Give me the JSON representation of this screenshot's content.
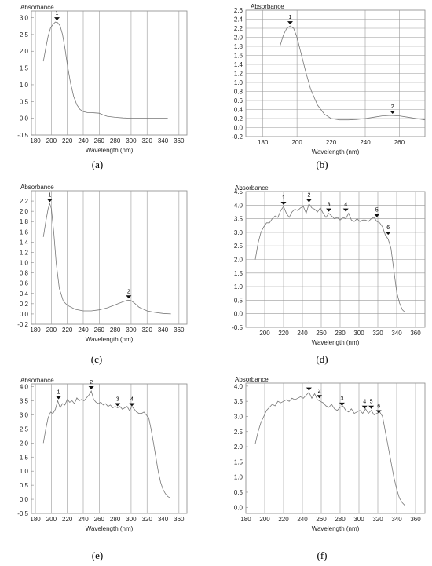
{
  "chart_data": [
    {
      "panel": "(a)",
      "type": "line",
      "ylabel": "Absorbance",
      "xlabel": "Wavelength (nm)",
      "xlim": [
        175,
        370
      ],
      "ylim": [
        -0.5,
        3.2
      ],
      "grid": "x",
      "xticks": [
        180,
        200,
        220,
        240,
        260,
        280,
        300,
        320,
        340,
        360
      ],
      "yticks": [
        -0.5,
        0.0,
        0.5,
        1.0,
        1.5,
        2.0,
        2.5,
        3.0
      ],
      "series": [
        {
          "x": [
            190,
            193,
            196,
            199,
            202,
            205,
            208,
            211,
            214,
            217,
            220,
            224,
            228,
            232,
            236,
            240,
            245,
            250,
            255,
            260,
            265,
            270,
            280,
            290,
            300,
            310,
            320,
            330,
            340,
            346
          ],
          "y": [
            1.7,
            2.1,
            2.45,
            2.7,
            2.8,
            2.87,
            2.85,
            2.75,
            2.5,
            2.1,
            1.6,
            1.05,
            0.65,
            0.4,
            0.26,
            0.2,
            0.17,
            0.17,
            0.16,
            0.15,
            0.1,
            0.06,
            0.03,
            0.01,
            0.0,
            0.0,
            0.0,
            0.0,
            0.0,
            0.0
          ]
        }
      ],
      "peaks": [
        {
          "label": "1",
          "x": 207,
          "y": 2.87
        }
      ]
    },
    {
      "panel": "(b)",
      "type": "line",
      "ylabel": "Absorbance",
      "xlabel": "Wavelength (nm)",
      "xlim": [
        170,
        275
      ],
      "ylim": [
        -0.2,
        2.6
      ],
      "grid": "xy",
      "xticks": [
        180,
        200,
        220,
        240,
        260
      ],
      "yticks": [
        -0.2,
        0.0,
        0.2,
        0.4,
        0.6,
        0.8,
        1.0,
        1.2,
        1.4,
        1.6,
        1.8,
        2.0,
        2.2,
        2.4,
        2.6
      ],
      "series": [
        {
          "x": [
            190,
            192,
            194,
            196,
            198,
            200,
            202,
            205,
            208,
            212,
            216,
            220,
            225,
            230,
            235,
            240,
            245,
            250,
            255,
            260,
            265,
            270,
            275
          ],
          "y": [
            1.8,
            2.05,
            2.2,
            2.25,
            2.2,
            2.0,
            1.7,
            1.25,
            0.85,
            0.5,
            0.3,
            0.2,
            0.17,
            0.17,
            0.18,
            0.2,
            0.23,
            0.26,
            0.27,
            0.26,
            0.23,
            0.2,
            0.17
          ]
        }
      ],
      "peaks": [
        {
          "label": "1",
          "x": 196,
          "y": 2.25
        },
        {
          "label": "2",
          "x": 256,
          "y": 0.27
        }
      ]
    },
    {
      "panel": "(c)",
      "type": "line",
      "ylabel": "Absorbance",
      "xlabel": "Wavelength (nm)",
      "xlim": [
        175,
        370
      ],
      "ylim": [
        -0.2,
        2.4
      ],
      "grid": "x",
      "xticks": [
        180,
        200,
        220,
        240,
        260,
        280,
        300,
        320,
        340,
        360
      ],
      "yticks": [
        -0.2,
        0.0,
        0.2,
        0.4,
        0.6,
        0.8,
        1.0,
        1.2,
        1.4,
        1.6,
        1.8,
        2.0,
        2.2
      ],
      "series": [
        {
          "x": [
            190,
            193,
            196,
            198,
            200,
            203,
            206,
            210,
            215,
            220,
            230,
            240,
            250,
            260,
            270,
            280,
            290,
            296,
            300,
            305,
            310,
            320,
            330,
            340,
            350
          ],
          "y": [
            1.5,
            1.8,
            2.05,
            2.15,
            2.05,
            1.6,
            1.0,
            0.5,
            0.25,
            0.17,
            0.09,
            0.06,
            0.06,
            0.08,
            0.12,
            0.18,
            0.24,
            0.27,
            0.26,
            0.2,
            0.13,
            0.06,
            0.03,
            0.01,
            0.0
          ]
        }
      ],
      "peaks": [
        {
          "label": "1",
          "x": 198,
          "y": 2.15
        },
        {
          "label": "2",
          "x": 297,
          "y": 0.27
        }
      ]
    },
    {
      "panel": "(d)",
      "type": "line",
      "ylabel": "Absorbance",
      "xlabel": "Wavelength (nm)",
      "xlim": [
        180,
        370
      ],
      "ylim": [
        -0.5,
        4.5
      ],
      "grid": "xy",
      "xticks": [
        200,
        220,
        240,
        260,
        280,
        300,
        320,
        340,
        360
      ],
      "yticks": [
        -0.5,
        0.0,
        0.5,
        1.0,
        1.5,
        2.0,
        2.5,
        3.0,
        3.5,
        4.0,
        4.5
      ],
      "series": [
        {
          "x": [
            190,
            193,
            196,
            199,
            202,
            205,
            208,
            211,
            214,
            217,
            220,
            223,
            226,
            229,
            232,
            235,
            238,
            241,
            244,
            247,
            250,
            253,
            256,
            259,
            262,
            265,
            268,
            271,
            274,
            277,
            280,
            283,
            286,
            289,
            292,
            295,
            298,
            301,
            304,
            307,
            310,
            313,
            316,
            319,
            322,
            325,
            328,
            331,
            334,
            337,
            340,
            343,
            346,
            349
          ],
          "y": [
            2.0,
            2.6,
            3.0,
            3.2,
            3.35,
            3.35,
            3.5,
            3.6,
            3.55,
            3.8,
            3.95,
            3.7,
            3.55,
            3.75,
            3.85,
            3.8,
            3.9,
            3.95,
            3.7,
            4.05,
            3.9,
            3.85,
            3.75,
            3.9,
            3.7,
            3.55,
            3.7,
            3.6,
            3.5,
            3.55,
            3.45,
            3.55,
            3.5,
            3.7,
            3.45,
            3.4,
            3.5,
            3.4,
            3.45,
            3.45,
            3.4,
            3.5,
            3.55,
            3.4,
            3.35,
            3.2,
            2.9,
            2.75,
            2.4,
            1.6,
            0.8,
            0.4,
            0.15,
            0.05
          ]
        }
      ],
      "peaks": [
        {
          "label": "1",
          "x": 220,
          "y": 3.95
        },
        {
          "label": "2",
          "x": 247,
          "y": 4.05
        },
        {
          "label": "3",
          "x": 268,
          "y": 3.7
        },
        {
          "label": "4",
          "x": 286,
          "y": 3.7
        },
        {
          "label": "5",
          "x": 319,
          "y": 3.5
        },
        {
          "label": "6",
          "x": 331,
          "y": 2.85
        }
      ]
    },
    {
      "panel": "(e)",
      "type": "line",
      "ylabel": "Absorbance",
      "xlabel": "Wavelength (nm)",
      "xlim": [
        175,
        370
      ],
      "ylim": [
        -0.5,
        4.1
      ],
      "grid": "x",
      "xticks": [
        180,
        200,
        220,
        240,
        260,
        280,
        300,
        320,
        340,
        360
      ],
      "yticks": [
        -0.5,
        0.0,
        0.5,
        1.0,
        1.5,
        2.0,
        2.5,
        3.0,
        3.5,
        4.0
      ],
      "series": [
        {
          "x": [
            190,
            193,
            196,
            199,
            202,
            205,
            208,
            211,
            214,
            217,
            220,
            223,
            226,
            229,
            232,
            235,
            238,
            241,
            244,
            247,
            250,
            253,
            256,
            259,
            262,
            265,
            268,
            271,
            274,
            277,
            280,
            283,
            286,
            289,
            292,
            295,
            298,
            301,
            304,
            307,
            310,
            313,
            316,
            319,
            322,
            325,
            328,
            331,
            334,
            337,
            340,
            343,
            346,
            349
          ],
          "y": [
            2.0,
            2.5,
            2.9,
            3.1,
            3.05,
            3.2,
            3.5,
            3.25,
            3.4,
            3.35,
            3.55,
            3.45,
            3.5,
            3.4,
            3.6,
            3.5,
            3.55,
            3.5,
            3.6,
            3.7,
            3.85,
            3.55,
            3.45,
            3.4,
            3.45,
            3.35,
            3.4,
            3.3,
            3.35,
            3.25,
            3.3,
            3.25,
            3.3,
            3.2,
            3.25,
            3.3,
            3.15,
            3.3,
            3.2,
            3.1,
            3.05,
            3.05,
            3.1,
            3.0,
            2.9,
            2.5,
            2.0,
            1.5,
            1.0,
            0.6,
            0.35,
            0.2,
            0.1,
            0.05
          ]
        }
      ],
      "peaks": [
        {
          "label": "1",
          "x": 209,
          "y": 3.5
        },
        {
          "label": "2",
          "x": 250,
          "y": 3.85
        },
        {
          "label": "3",
          "x": 283,
          "y": 3.25
        },
        {
          "label": "4",
          "x": 301,
          "y": 3.25
        }
      ]
    },
    {
      "panel": "(f)",
      "type": "line",
      "ylabel": "Absorbance",
      "xlabel": "Wavelength (nm)",
      "xlim": [
        180,
        370
      ],
      "ylim": [
        -0.2,
        4.1
      ],
      "grid": "x",
      "xticks": [
        180,
        200,
        220,
        240,
        260,
        280,
        300,
        320,
        340,
        360
      ],
      "yticks": [
        0.0,
        0.5,
        1.0,
        1.5,
        2.0,
        2.5,
        3.0,
        3.5,
        4.0
      ],
      "series": [
        {
          "x": [
            190,
            193,
            196,
            199,
            202,
            205,
            208,
            211,
            214,
            217,
            220,
            223,
            226,
            229,
            232,
            235,
            238,
            241,
            244,
            247,
            250,
            253,
            256,
            259,
            262,
            265,
            268,
            271,
            274,
            277,
            280,
            283,
            286,
            289,
            292,
            295,
            298,
            301,
            304,
            307,
            310,
            313,
            316,
            319,
            322,
            325,
            328,
            331,
            334,
            337,
            340,
            343,
            346,
            349
          ],
          "y": [
            2.1,
            2.5,
            2.8,
            3.0,
            3.2,
            3.3,
            3.4,
            3.35,
            3.5,
            3.45,
            3.5,
            3.55,
            3.5,
            3.6,
            3.55,
            3.6,
            3.65,
            3.6,
            3.7,
            3.8,
            3.6,
            3.75,
            3.55,
            3.5,
            3.45,
            3.35,
            3.3,
            3.4,
            3.25,
            3.2,
            3.3,
            3.35,
            3.2,
            3.15,
            3.25,
            3.1,
            3.15,
            3.2,
            3.1,
            3.25,
            3.1,
            3.2,
            3.05,
            3.1,
            3.15,
            3.0,
            2.5,
            2.0,
            1.5,
            1.0,
            0.6,
            0.3,
            0.15,
            0.05
          ]
        }
      ],
      "peaks": [
        {
          "label": "1",
          "x": 247,
          "y": 3.8
        },
        {
          "label": "2",
          "x": 258,
          "y": 3.55
        },
        {
          "label": "3",
          "x": 282,
          "y": 3.3
        },
        {
          "label": "4",
          "x": 306,
          "y": 3.2
        },
        {
          "label": "5",
          "x": 313,
          "y": 3.2
        },
        {
          "label": "6",
          "x": 321,
          "y": 3.05
        }
      ]
    }
  ]
}
